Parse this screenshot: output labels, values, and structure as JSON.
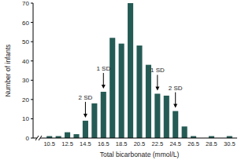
{
  "chart_data": {
    "type": "bar",
    "x_label": "Total bicarbonate (mmol/L)",
    "y_label": "Number of infants",
    "categories": [
      "10.5",
      null,
      "12.5",
      null,
      "14.5",
      null,
      "16.5",
      null,
      "18.5",
      null,
      "20.5",
      null,
      "22.5",
      null,
      "24.5",
      null,
      "26.5",
      null,
      "28.5",
      null,
      "30.5"
    ],
    "values": [
      1,
      1,
      3,
      2,
      9,
      18,
      24,
      52,
      49,
      70,
      48,
      38,
      23,
      22,
      14,
      6,
      1,
      0,
      1,
      0,
      1
    ],
    "color": "#255b55",
    "ylim": [
      0,
      70
    ],
    "yticks": [
      0,
      10,
      20,
      30,
      40,
      50,
      60,
      70
    ],
    "grid": false,
    "annotations": [
      {
        "text": "2 SD",
        "index": 4
      },
      {
        "text": "1 SD",
        "index": 6
      },
      {
        "text": "1 SD",
        "index": 12
      },
      {
        "text": "2 SD",
        "index": 14
      }
    ]
  }
}
